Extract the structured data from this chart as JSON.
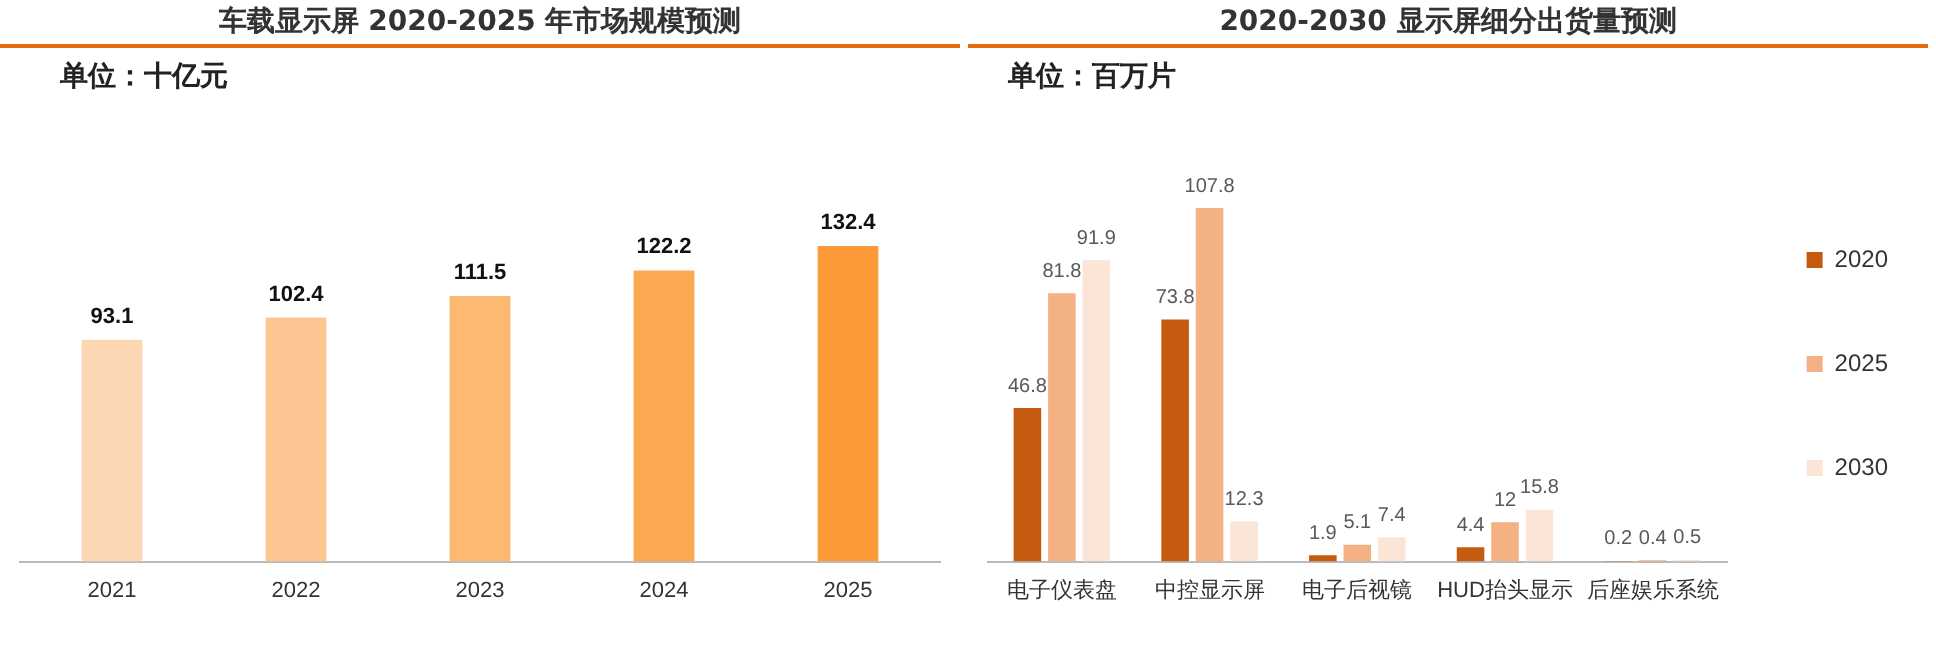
{
  "chart_data": [
    {
      "type": "bar",
      "title": "车载显示屏 2020-2025 年市场规模预测",
      "annotations": [
        "单位：十亿元"
      ],
      "categories": [
        "2021",
        "2022",
        "2023",
        "2024",
        "2025"
      ],
      "values": [
        93.1,
        102.4,
        111.5,
        122.2,
        132.4
      ],
      "colors": [
        "#fdd7b4",
        "#fdc591",
        "#fdb872",
        "#fca752",
        "#fb9a36"
      ],
      "tick_labels": "x",
      "data_labels": true,
      "grid": false,
      "legend": false
    },
    {
      "type": "bar",
      "title": "2020-2030 显示屏细分出货量预测",
      "annotations": [
        "单位：百万片"
      ],
      "categories": [
        "电子仪表盘",
        "中控显示屏",
        "电子后视镜",
        "HUD抬头显示",
        "后座娱乐系统"
      ],
      "series": [
        {
          "name": "2020",
          "color": "#c55a11",
          "values": [
            46.8,
            73.8,
            1.9,
            4.4,
            0.2
          ]
        },
        {
          "name": "2025",
          "color": "#f4b183",
          "values": [
            81.8,
            107.8,
            5.1,
            12,
            0.4
          ]
        },
        {
          "name": "2030",
          "color": "#fbe5d6",
          "values": [
            91.9,
            12.3,
            7.4,
            15.8,
            0.5
          ]
        }
      ],
      "tick_labels": "x",
      "data_labels": true,
      "grid": false,
      "legend": "right"
    }
  ]
}
